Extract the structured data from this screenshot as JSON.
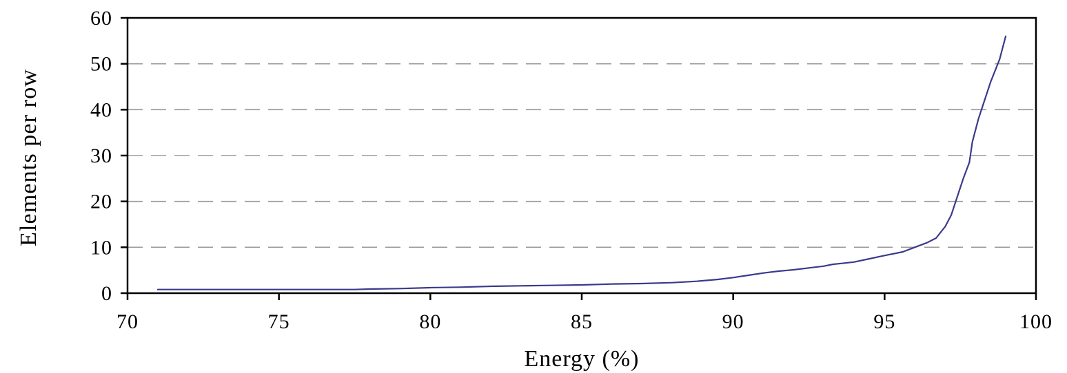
{
  "chart_data": {
    "type": "line",
    "title": "",
    "xlabel": "Energy (%)",
    "ylabel": "Elements per row",
    "xlim": [
      70,
      100
    ],
    "ylim": [
      0,
      60
    ],
    "xticks": [
      "70",
      "75",
      "80",
      "85",
      "90",
      "95",
      "100"
    ],
    "yticks": [
      "0",
      "10",
      "20",
      "30",
      "40",
      "50",
      "60"
    ],
    "grid": "horizontal dashed",
    "legend": "none",
    "line_color": "#3a3a8c",
    "series": [
      {
        "x": [
          71,
          72,
          73,
          74,
          75,
          76,
          77,
          77.5,
          78,
          79,
          80,
          81,
          82,
          83,
          84,
          85,
          86,
          87,
          88,
          88.8,
          89.5,
          90,
          90.5,
          91,
          91.5,
          92,
          92.5,
          93,
          93.3,
          93.6,
          94,
          94.5,
          95,
          95.6,
          96,
          96.4,
          96.7,
          97,
          97.2,
          97.4,
          97.6,
          97.8,
          97.9,
          98.1,
          98.3,
          98.5,
          98.8,
          99
        ],
        "y": [
          0.8,
          0.8,
          0.8,
          0.8,
          0.8,
          0.8,
          0.8,
          0.8,
          0.9,
          1.0,
          1.2,
          1.3,
          1.5,
          1.6,
          1.7,
          1.8,
          2.0,
          2.1,
          2.3,
          2.6,
          3.0,
          3.4,
          3.9,
          4.4,
          4.8,
          5.1,
          5.5,
          5.9,
          6.3,
          6.5,
          6.8,
          7.5,
          8.2,
          9.0,
          10.0,
          11.0,
          12.0,
          14.5,
          17.0,
          21.0,
          25.0,
          28.5,
          33.0,
          38.0,
          42.0,
          46.0,
          51.0,
          56.0
        ]
      }
    ]
  }
}
